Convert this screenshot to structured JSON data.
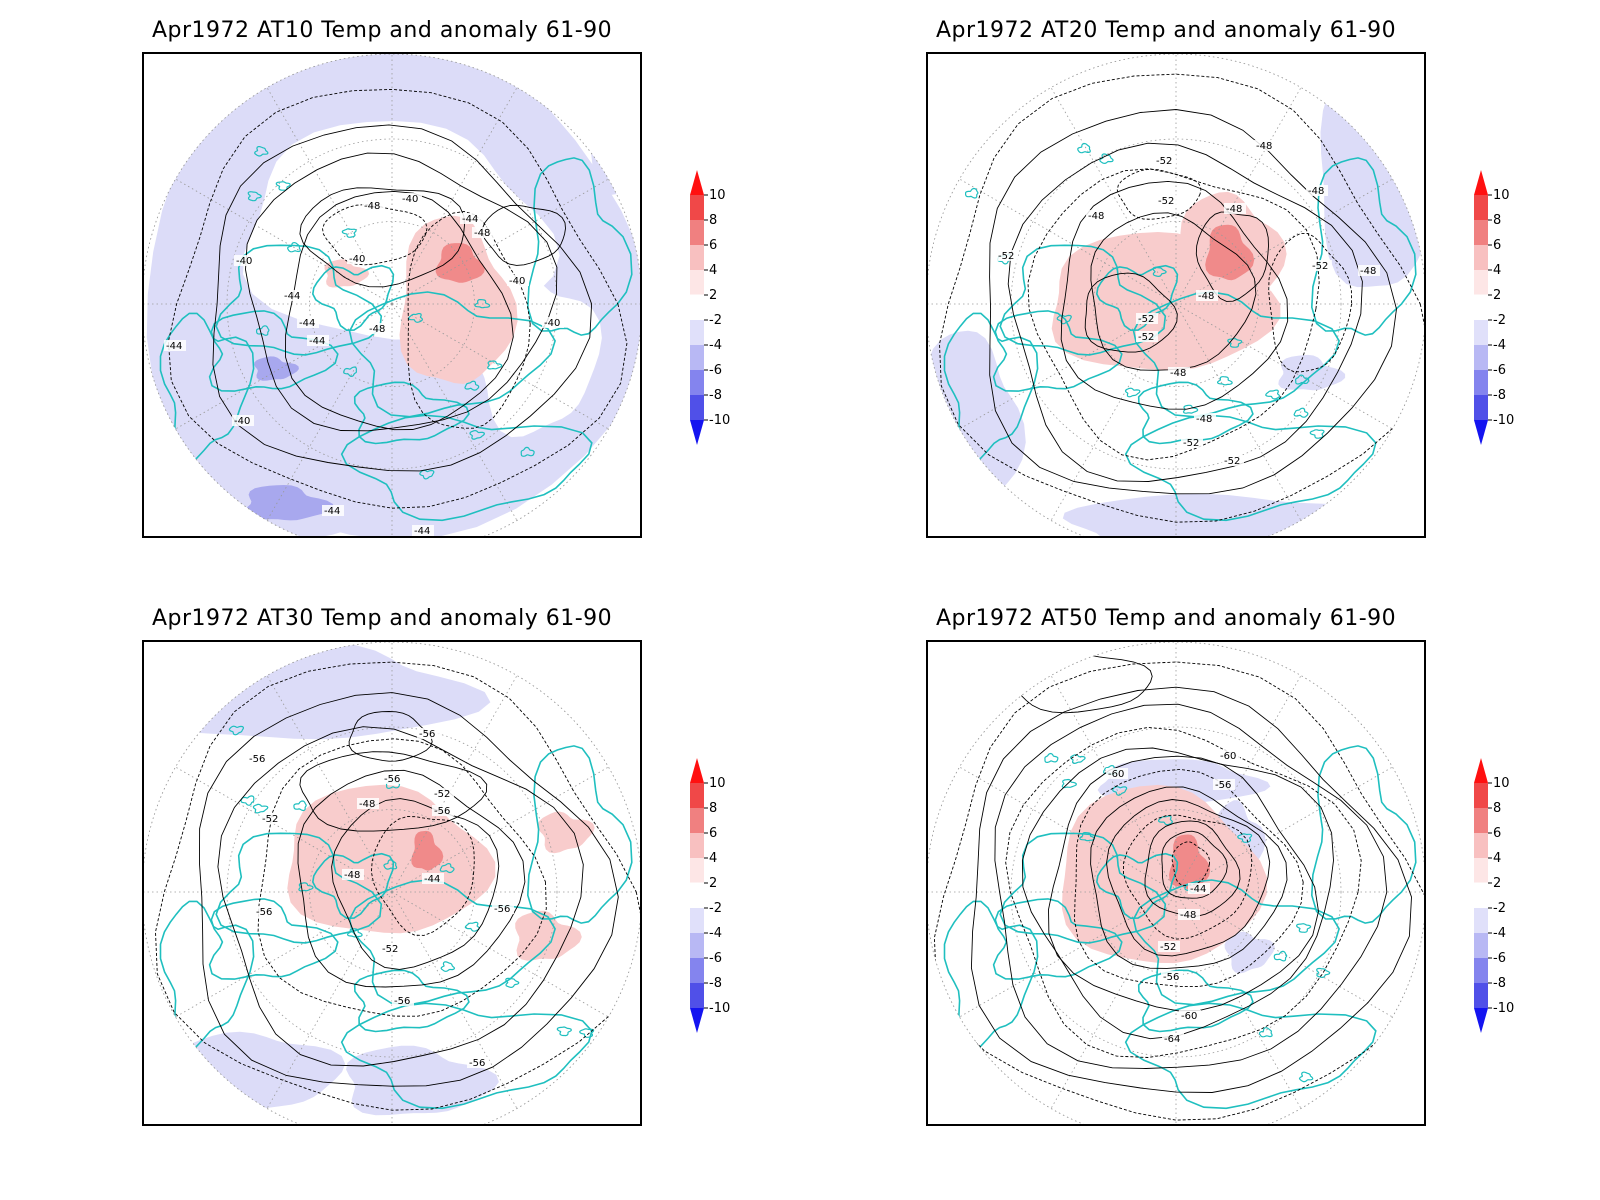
{
  "panels": [
    {
      "title": "Apr1972 AT10 Temp and anomaly 61-90",
      "contour_labels": [
        "-40",
        "-44",
        "-48",
        "-40",
        "-44",
        "-48",
        "-44",
        "-40",
        "-44",
        "-48",
        "-40",
        "-40",
        "-44",
        "-40",
        "-44",
        "-44"
      ]
    },
    {
      "title": "Apr1972 AT20 Temp and anomaly 61-90",
      "contour_labels": [
        "-52",
        "-48",
        "-48",
        "-52",
        "-52",
        "-48",
        "-48",
        "-52",
        "-48",
        "-52",
        "-48",
        "-52",
        "-48",
        "-48",
        "-52",
        "-52"
      ]
    },
    {
      "title": "Apr1972 AT30 Temp and anomaly 61-90",
      "contour_labels": [
        "-56",
        "-56",
        "-56",
        "-52",
        "-48",
        "-52",
        "-56",
        "-48",
        "-44",
        "-52",
        "-56",
        "-56",
        "-56",
        "-56"
      ]
    },
    {
      "title": "Apr1972 AT50 Temp and anomaly 61-90",
      "contour_labels": [
        "-60",
        "-60",
        "-56",
        "-44",
        "-48",
        "-52",
        "-56",
        "-60",
        "-64"
      ]
    }
  ],
  "colorbar": {
    "labels": [
      "10",
      "8",
      "6",
      "4",
      "2",
      "-2",
      "-4",
      "-6",
      "-8",
      "-10"
    ],
    "colors": [
      "#ff1010",
      "#f04848",
      "#f08080",
      "#f8c0c0",
      "#fde6e6",
      "#ffffff",
      "#e0e0fa",
      "#b8b8f4",
      "#8484ee",
      "#5050e8",
      "#1414f0"
    ]
  },
  "map_colors": {
    "coastline": "#1fbfbf",
    "contour": "#000000",
    "positive_anomaly": "#f8cccc",
    "positive_strong": "#f08a8a",
    "negative_anomaly": "#dcdcf8",
    "negative_strong": "#a8a8ee",
    "grid": "#9a9a9a"
  }
}
